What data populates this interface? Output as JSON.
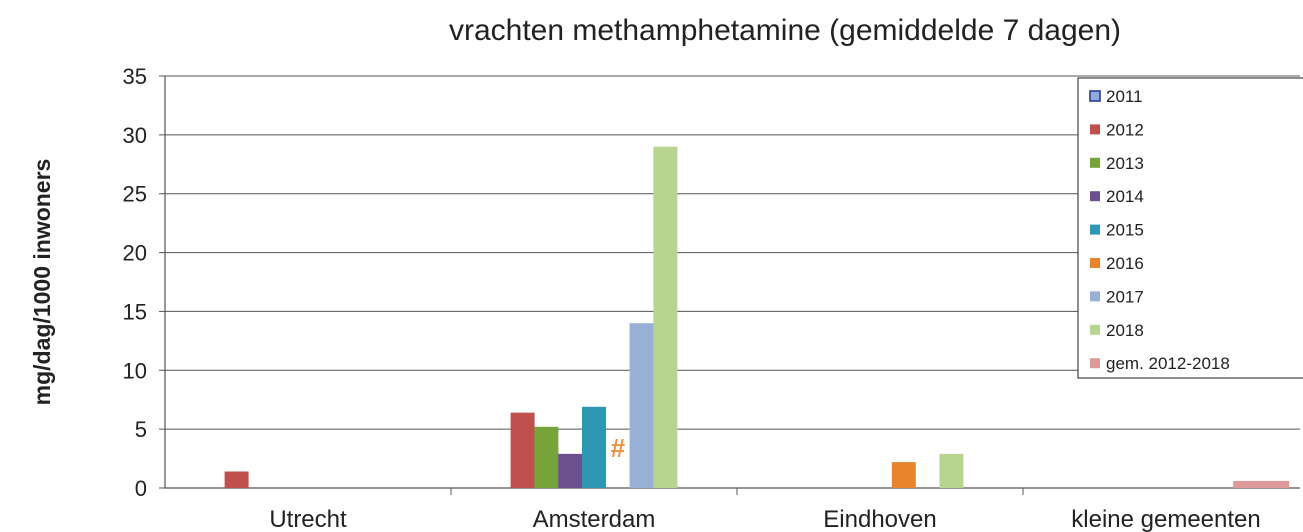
{
  "chart_data": {
    "type": "bar",
    "title": "vrachten methamphetamine (gemiddelde 7 dagen)",
    "ylabel": "mg/dag/1000 inwoners",
    "xlabel": "",
    "ylim": [
      0,
      35
    ],
    "yticks": [
      0,
      5,
      10,
      15,
      20,
      25,
      30,
      35
    ],
    "grid": true,
    "legend_position": "right",
    "categories": [
      "Utrecht",
      "Amsterdam",
      "Eindhoven",
      "kleine gemeenten"
    ],
    "series": [
      {
        "name": "2011",
        "color": "#8eaadb",
        "values": [
          null,
          null,
          null,
          null
        ]
      },
      {
        "name": "2012",
        "color": "#c0504d",
        "values": [
          1.4,
          6.4,
          null,
          null
        ]
      },
      {
        "name": "2013",
        "color": "#77a33b",
        "values": [
          null,
          5.2,
          null,
          null
        ]
      },
      {
        "name": "2014",
        "color": "#6b4f8f",
        "values": [
          null,
          2.9,
          null,
          null
        ]
      },
      {
        "name": "2015",
        "color": "#2e98b4",
        "values": [
          null,
          6.9,
          null,
          null
        ]
      },
      {
        "name": "2016",
        "color": "#e8852c",
        "values": [
          null,
          null,
          2.2,
          null
        ]
      },
      {
        "name": "2017",
        "color": "#98afd6",
        "values": [
          null,
          14.0,
          null,
          null
        ]
      },
      {
        "name": "2018",
        "color": "#b7d490",
        "values": [
          null,
          29.0,
          2.9,
          null
        ]
      },
      {
        "name": "gem. 2012-2018",
        "color": "#de9a98",
        "values": [
          null,
          null,
          null,
          0.6
        ]
      }
    ],
    "annotations": [
      {
        "text": "#",
        "category": "Amsterdam",
        "series": "2016",
        "color": "#f0903a"
      }
    ]
  }
}
